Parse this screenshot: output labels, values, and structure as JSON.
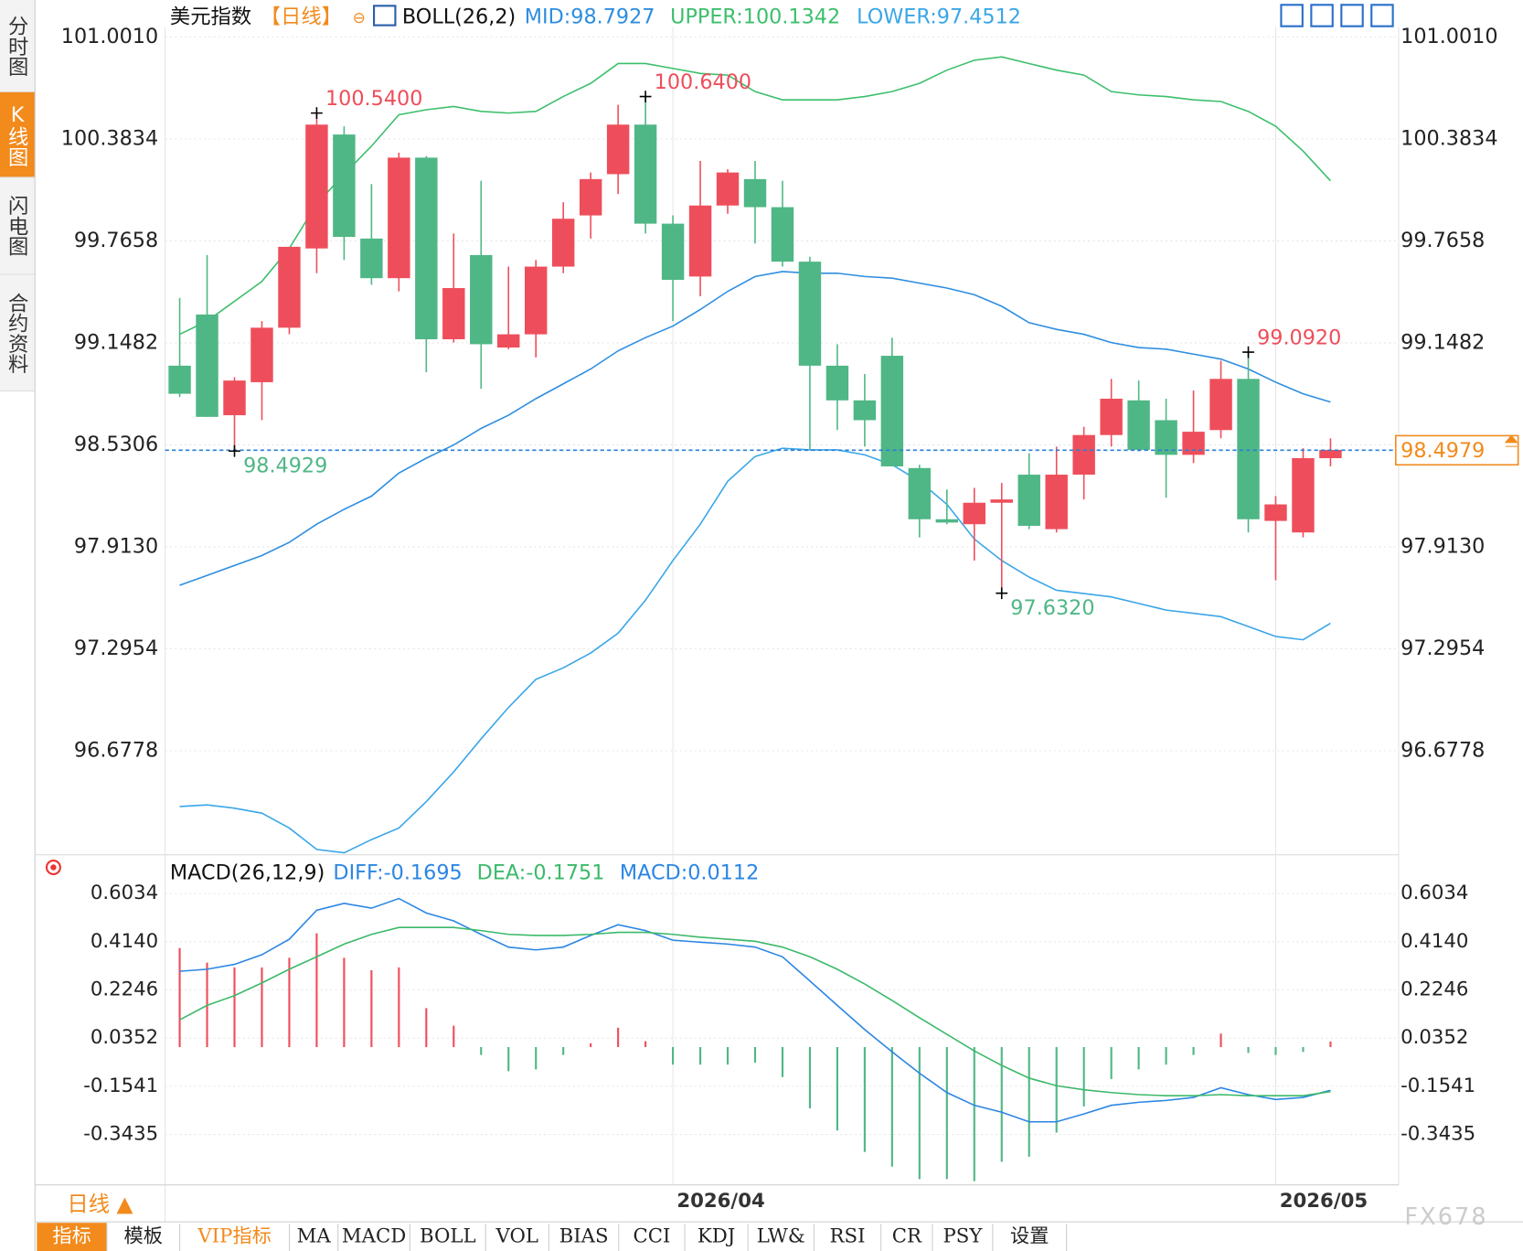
{
  "chart_data": [
    {
      "type": "candlestick",
      "title": "美元指数",
      "period": "【日线】",
      "indicator": "BOLL(26,2)",
      "categories": [
        null,
        null,
        null,
        null,
        null,
        null,
        null,
        null,
        null,
        null,
        null,
        null,
        null,
        null,
        null,
        null,
        null,
        null,
        "2026/04",
        null,
        null,
        null,
        null,
        null,
        null,
        null,
        null,
        null,
        null,
        null,
        null,
        null,
        null,
        null,
        null,
        null,
        null,
        null,
        null,
        null,
        "2026/05",
        null,
        null
      ],
      "open": [
        99.01,
        99.32,
        98.71,
        98.91,
        99.24,
        99.72,
        100.41,
        99.78,
        99.54,
        100.27,
        99.17,
        99.68,
        99.12,
        99.2,
        99.61,
        99.92,
        100.17,
        100.47,
        99.87,
        99.55,
        99.98,
        100.14,
        99.97,
        99.64,
        99.01,
        98.8,
        99.07,
        98.39,
        98.08,
        98.05,
        98.18,
        98.35,
        98.02,
        98.35,
        98.59,
        98.8,
        98.68,
        98.47,
        98.62,
        98.93,
        98.07,
        98.0,
        98.45
      ],
      "high": [
        99.42,
        99.68,
        98.94,
        99.28,
        99.73,
        100.54,
        100.46,
        100.11,
        100.3,
        100.28,
        99.81,
        100.13,
        99.61,
        99.65,
        100.0,
        100.18,
        100.59,
        100.64,
        99.92,
        100.25,
        100.2,
        100.25,
        100.13,
        99.67,
        99.14,
        98.96,
        99.18,
        98.41,
        98.26,
        98.27,
        98.3,
        98.48,
        98.52,
        98.64,
        98.93,
        98.92,
        98.81,
        98.86,
        99.04,
        99.092,
        98.22,
        98.51,
        98.57
      ],
      "low": [
        98.82,
        98.7,
        98.4929,
        98.68,
        99.2,
        99.57,
        99.65,
        99.5,
        99.46,
        98.97,
        99.15,
        98.87,
        99.11,
        99.06,
        99.57,
        99.78,
        100.05,
        99.81,
        99.28,
        99.43,
        99.93,
        99.75,
        99.61,
        98.5,
        98.62,
        98.52,
        98.4,
        97.97,
        98.05,
        97.83,
        97.632,
        98.02,
        98.0,
        98.2,
        98.52,
        98.49,
        98.21,
        98.42,
        98.57,
        98.0,
        97.71,
        97.97,
        98.4
      ],
      "close": [
        98.84,
        98.7,
        98.92,
        99.24,
        99.73,
        100.47,
        99.79,
        99.54,
        100.27,
        99.17,
        99.48,
        99.14,
        99.2,
        99.61,
        99.9,
        100.14,
        100.47,
        99.87,
        99.53,
        99.98,
        100.18,
        99.97,
        99.64,
        99.01,
        98.8,
        98.68,
        98.4,
        98.08,
        98.06,
        98.18,
        98.2,
        98.04,
        98.35,
        98.59,
        98.81,
        98.5,
        98.47,
        98.61,
        98.93,
        98.08,
        98.17,
        98.45,
        98.5
      ],
      "up_color": "#ee4e5b",
      "down_color": "#4fb785",
      "series": [
        {
          "name": "MID:98.7927",
          "color": "#2e8ee0",
          "values": [
            97.68,
            97.74,
            97.8,
            97.86,
            97.94,
            98.05,
            98.14,
            98.22,
            98.36,
            98.45,
            98.53,
            98.63,
            98.71,
            98.81,
            98.9,
            98.99,
            99.1,
            99.18,
            99.25,
            99.35,
            99.46,
            99.55,
            99.58,
            99.57,
            99.57,
            99.55,
            99.54,
            99.51,
            99.48,
            99.44,
            99.37,
            99.27,
            99.23,
            99.2,
            99.15,
            99.12,
            99.11,
            99.08,
            99.05,
            98.99,
            98.91,
            98.84,
            98.79
          ]
        },
        {
          "name": "UPPER:100.1342",
          "color": "#3cbf6c",
          "values": [
            99.2,
            99.28,
            99.4,
            99.52,
            99.72,
            99.99,
            100.17,
            100.34,
            100.53,
            100.56,
            100.58,
            100.55,
            100.54,
            100.55,
            100.64,
            100.72,
            100.84,
            100.84,
            100.81,
            100.78,
            100.77,
            100.67,
            100.62,
            100.62,
            100.62,
            100.64,
            100.67,
            100.72,
            100.8,
            100.86,
            100.88,
            100.84,
            100.8,
            100.77,
            100.67,
            100.65,
            100.64,
            100.62,
            100.61,
            100.55,
            100.46,
            100.31,
            100.13
          ]
        },
        {
          "name": "LOWER:97.4512",
          "color": "#3aa6e8",
          "values": [
            96.34,
            96.35,
            96.33,
            96.3,
            96.21,
            96.08,
            96.06,
            96.14,
            96.21,
            96.37,
            96.55,
            96.75,
            96.94,
            97.11,
            97.18,
            97.27,
            97.39,
            97.59,
            97.83,
            98.05,
            98.31,
            98.46,
            98.51,
            98.5,
            98.5,
            98.47,
            98.41,
            98.31,
            98.17,
            97.96,
            97.83,
            97.73,
            97.65,
            97.63,
            97.61,
            97.57,
            97.53,
            97.51,
            97.49,
            97.43,
            97.37,
            97.35,
            97.45
          ]
        }
      ],
      "ylim": [
        96.06,
        101.06
      ],
      "yticks": [
        {
          "value": 101.001,
          "label": "101.0010"
        },
        100.3834,
        99.7658,
        99.1482,
        98.5306,
        {
          "value": 97.913,
          "label": "97.9130"
        },
        97.2954,
        96.6778
      ],
      "grid": true,
      "last_price": 98.4979,
      "extremes": [
        {
          "value": 100.54,
          "label": "100.5400"
        },
        {
          "value": 100.64,
          "label": "100.6400"
        },
        {
          "value": 98.4929,
          "label": "98.4929"
        },
        {
          "value": 97.632,
          "label": "97.6320"
        },
        {
          "value": 99.092,
          "label": "99.0920"
        }
      ]
    },
    {
      "type": "combo",
      "title": "MACD(26,12,9)",
      "series": [
        {
          "name": "DIFF:-0.1695",
          "color": "#2b86e4",
          "values": [
            0.298,
            0.306,
            0.325,
            0.363,
            0.424,
            0.538,
            0.565,
            0.546,
            0.584,
            0.527,
            0.496,
            0.443,
            0.393,
            0.382,
            0.393,
            0.439,
            0.481,
            0.458,
            0.42,
            0.412,
            0.405,
            0.393,
            0.355,
            0.26,
            0.164,
            0.069,
            -0.019,
            -0.103,
            -0.179,
            -0.229,
            -0.256,
            -0.294,
            -0.294,
            -0.263,
            -0.229,
            -0.217,
            -0.21,
            -0.198,
            -0.16,
            -0.187,
            -0.206,
            -0.198,
            -0.17
          ]
        },
        {
          "name": "DEA:-0.1751",
          "color": "#3cb96a",
          "values": [
            0.107,
            0.164,
            0.202,
            0.252,
            0.306,
            0.355,
            0.405,
            0.443,
            0.47,
            0.47,
            0.47,
            0.458,
            0.443,
            0.439,
            0.439,
            0.443,
            0.451,
            0.451,
            0.443,
            0.432,
            0.424,
            0.416,
            0.393,
            0.355,
            0.306,
            0.248,
            0.183,
            0.115,
            0.05,
            -0.015,
            -0.072,
            -0.122,
            -0.152,
            -0.168,
            -0.179,
            -0.187,
            -0.191,
            -0.191,
            -0.187,
            -0.191,
            -0.191,
            -0.191,
            -0.175
          ]
        }
      ],
      "bars": {
        "name": "MACD:0.0112",
        "up_color": "#ee4e5b",
        "down_color": "#4fb785",
        "values": [
          0.389,
          0.332,
          0.313,
          0.313,
          0.351,
          0.447,
          0.351,
          0.302,
          0.313,
          0.153,
          0.084,
          -0.031,
          -0.095,
          -0.088,
          -0.031,
          0.015,
          0.076,
          0.023,
          -0.069,
          -0.069,
          -0.069,
          -0.061,
          -0.118,
          -0.241,
          -0.328,
          -0.412,
          -0.47,
          -0.519,
          -0.519,
          -0.527,
          -0.451,
          -0.431,
          -0.336,
          -0.233,
          -0.126,
          -0.088,
          -0.069,
          -0.031,
          0.053,
          -0.023,
          -0.031,
          -0.019,
          0.022
        ]
      },
      "ylim": [
        -0.542,
        0.737
      ],
      "yticks": [
        0.6034,
        {
          "value": 0.414,
          "label": "0.4140"
        },
        0.2246,
        0.0352,
        -0.1541,
        -0.3435
      ]
    }
  ],
  "ui": {
    "tabs": [
      "分时图",
      "K线图",
      "闪电图",
      "合约资料"
    ],
    "period_button": "日线 ▲",
    "toolbar": [
      "指标",
      "模板",
      "VIP指标",
      "MA",
      "MACD",
      "BOLL",
      "VOL",
      "BIAS",
      "CCI",
      "KDJ",
      "LW&",
      "RSI",
      "CR",
      "PSY",
      "设置"
    ],
    "watermark": "FX678"
  }
}
